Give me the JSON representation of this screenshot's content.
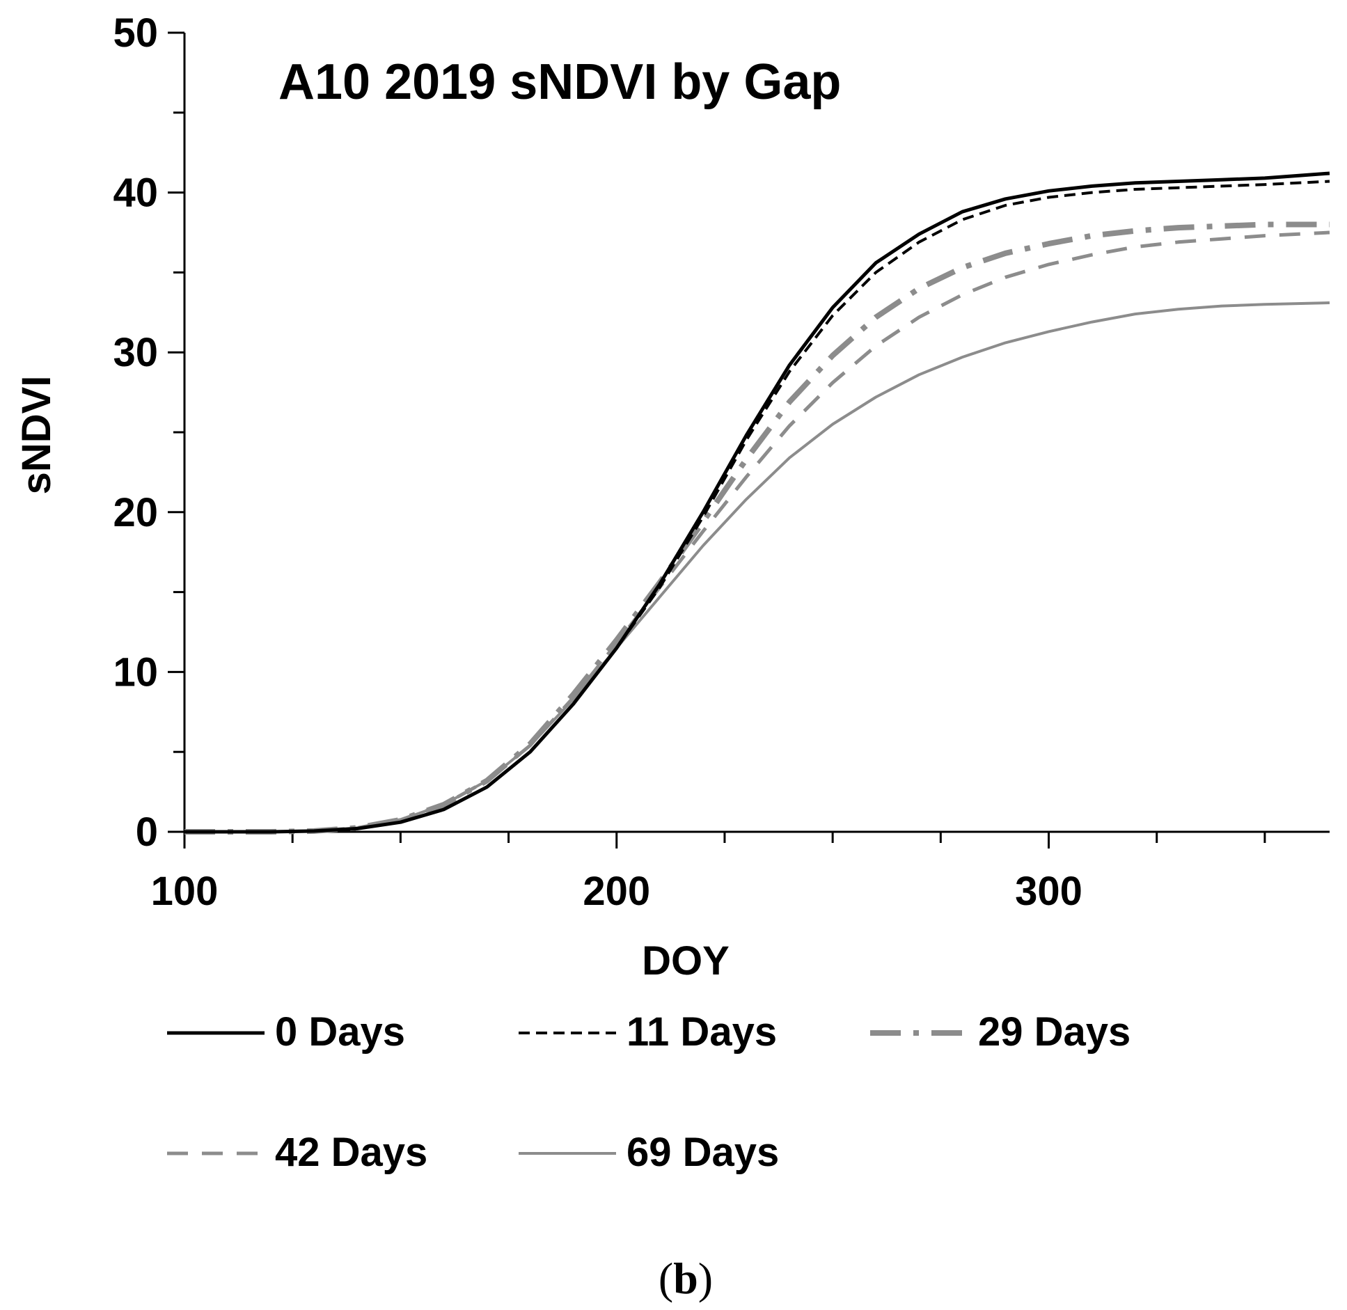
{
  "chart_data": {
    "type": "line",
    "title": "A10 2019 sNDVI by Gap",
    "xlabel": "DOY",
    "ylabel": "sNDVI",
    "xlim": [
      100,
      365
    ],
    "ylim": [
      0,
      50
    ],
    "x_ticks": [
      100,
      200,
      300
    ],
    "y_ticks": [
      0,
      10,
      20,
      30,
      40,
      50
    ],
    "x_minor_step": 25,
    "y_minor_step": 5,
    "grid": false,
    "legend_position": "bottom",
    "x": [
      100,
      110,
      120,
      130,
      140,
      150,
      160,
      170,
      180,
      190,
      200,
      210,
      220,
      230,
      240,
      250,
      260,
      270,
      280,
      290,
      300,
      310,
      320,
      330,
      340,
      350,
      365
    ],
    "series": [
      {
        "name": "0 Days",
        "color": "#000000",
        "dash": "solid",
        "width": 5,
        "values": [
          0,
          0,
          0,
          0.05,
          0.2,
          0.6,
          1.4,
          2.8,
          5.0,
          8.0,
          11.5,
          15.5,
          20.0,
          24.8,
          29.2,
          32.8,
          35.6,
          37.4,
          38.8,
          39.6,
          40.1,
          40.4,
          40.6,
          40.7,
          40.8,
          40.9,
          41.2
        ]
      },
      {
        "name": "11 Days",
        "color": "#000000",
        "dash": "short-dash",
        "width": 4,
        "values": [
          0,
          0,
          0,
          0.05,
          0.2,
          0.6,
          1.4,
          2.8,
          5.0,
          8.0,
          11.5,
          15.3,
          19.7,
          24.5,
          28.8,
          32.3,
          35.0,
          36.9,
          38.3,
          39.2,
          39.7,
          40.0,
          40.2,
          40.3,
          40.4,
          40.5,
          40.7
        ]
      },
      {
        "name": "29 Days",
        "color": "#8c8c8c",
        "dash": "dash-dot",
        "width": 8,
        "values": [
          0,
          0,
          0,
          0.05,
          0.25,
          0.75,
          1.7,
          3.2,
          5.5,
          8.6,
          12.0,
          15.6,
          19.4,
          23.3,
          26.9,
          29.8,
          32.2,
          34.0,
          35.3,
          36.2,
          36.8,
          37.3,
          37.6,
          37.8,
          37.9,
          38.0,
          38.0
        ]
      },
      {
        "name": "42 Days",
        "color": "#8c8c8c",
        "dash": "long-dash",
        "width": 5,
        "values": [
          0,
          0,
          0,
          0.05,
          0.25,
          0.75,
          1.7,
          3.2,
          5.4,
          8.4,
          11.8,
          15.3,
          18.8,
          22.2,
          25.4,
          28.1,
          30.4,
          32.2,
          33.6,
          34.7,
          35.5,
          36.1,
          36.6,
          36.9,
          37.1,
          37.3,
          37.5
        ]
      },
      {
        "name": "69 Days",
        "color": "#8c8c8c",
        "dash": "solid",
        "width": 4,
        "values": [
          0,
          0,
          0,
          0.05,
          0.25,
          0.75,
          1.7,
          3.2,
          5.4,
          8.3,
          11.5,
          14.7,
          17.9,
          20.8,
          23.4,
          25.5,
          27.2,
          28.6,
          29.7,
          30.6,
          31.3,
          31.9,
          32.4,
          32.7,
          32.9,
          33.0,
          33.1
        ]
      }
    ]
  },
  "caption": {
    "open": "(",
    "letter": "b",
    "close": ")"
  }
}
